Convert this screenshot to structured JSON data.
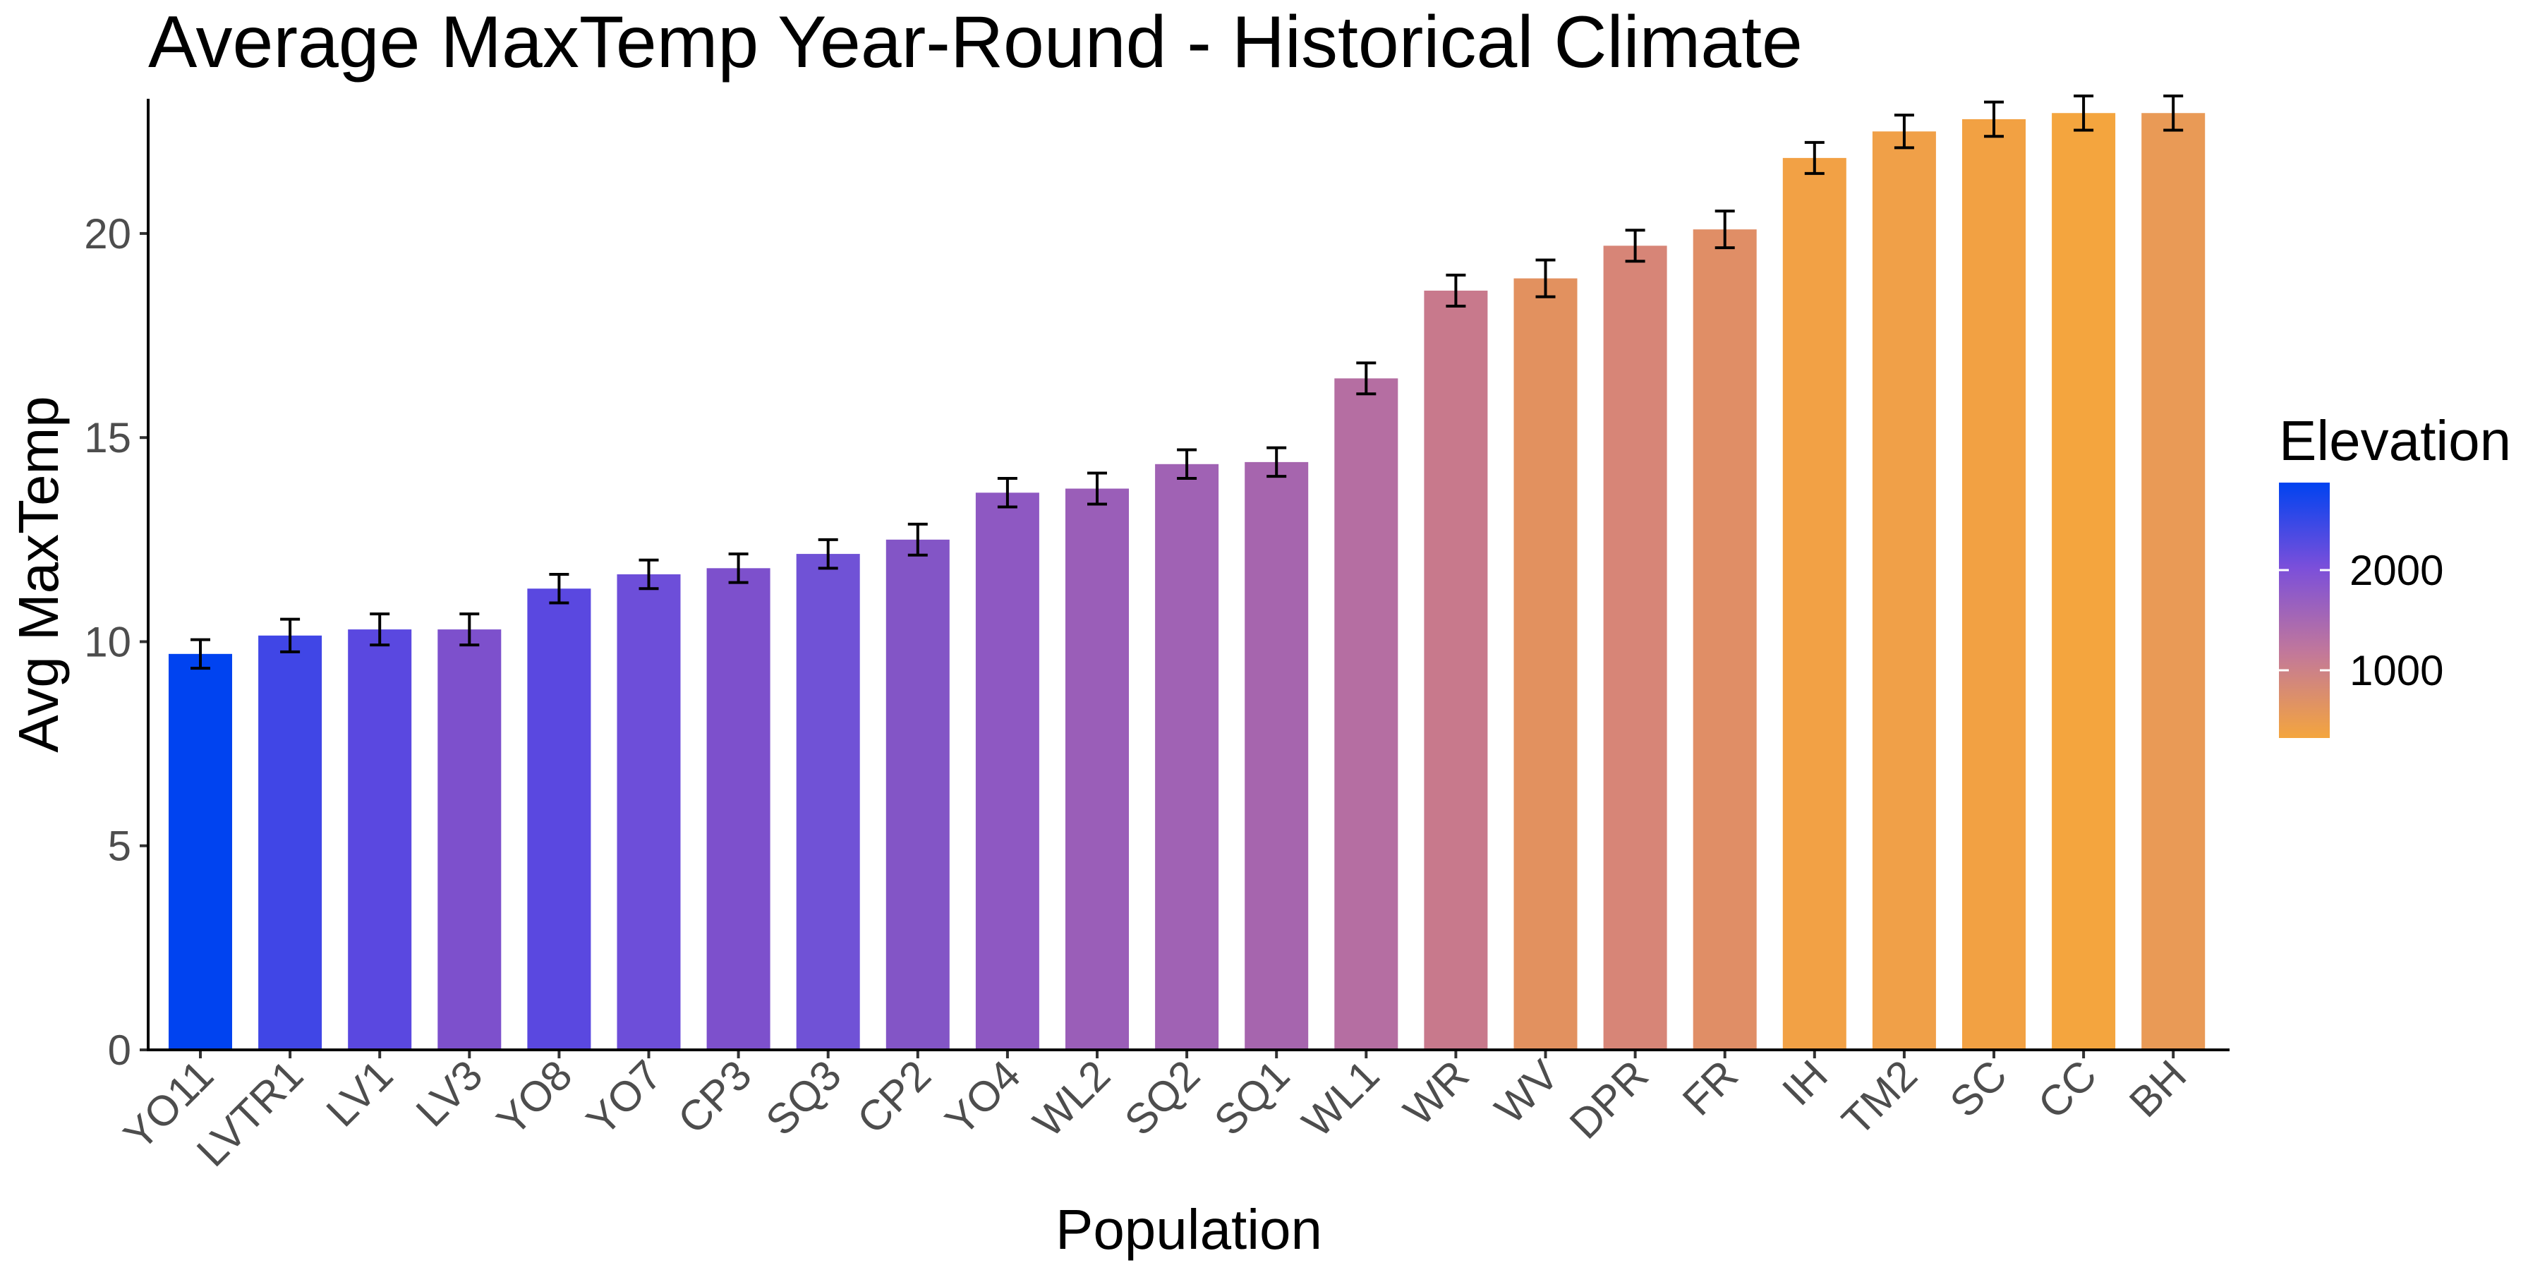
{
  "chart_data": {
    "type": "bar",
    "title": "Average MaxTemp Year-Round - Historical Climate",
    "xlabel": "Population",
    "ylabel": "Avg MaxTemp",
    "ylim": [
      0,
      23.3
    ],
    "yticks": [
      "0",
      "5",
      "10",
      "15",
      "20"
    ],
    "grid": false,
    "categories": [
      "YO11",
      "LVTR1",
      "LV1",
      "LV3",
      "YO8",
      "YO7",
      "CP3",
      "SQ3",
      "CP2",
      "YO4",
      "WL2",
      "SQ2",
      "SQ1",
      "WL1",
      "WR",
      "WV",
      "DPR",
      "FR",
      "IH",
      "TM2",
      "SC",
      "CC",
      "BH"
    ],
    "values": [
      9.7,
      10.15,
      10.3,
      10.3,
      11.3,
      11.65,
      11.8,
      12.15,
      12.5,
      13.65,
      13.75,
      14.35,
      14.4,
      16.45,
      18.6,
      18.9,
      19.7,
      20.1,
      21.85,
      22.5,
      22.8,
      22.95,
      22.95
    ],
    "error": [
      0.35,
      0.4,
      0.38,
      0.38,
      0.35,
      0.35,
      0.35,
      0.35,
      0.38,
      0.35,
      0.38,
      0.35,
      0.35,
      0.38,
      0.38,
      0.45,
      0.38,
      0.45,
      0.38,
      0.4,
      0.42,
      0.42,
      0.42
    ],
    "fill_colors": [
      "#0043F0",
      "#4046E6",
      "#5A48E0",
      "#7D50CC",
      "#5A48E0",
      "#6D4ED9",
      "#7D50CC",
      "#7052D6",
      "#8355C6",
      "#8E58C2",
      "#9A5EB8",
      "#A062B4",
      "#A665AE",
      "#B56EA2",
      "#C8798C",
      "#E2915F",
      "#D78577",
      "#E08E66",
      "#F2A145",
      "#F0A048",
      "#F2A143",
      "#F4A53E",
      "#E99A56"
    ],
    "legend": {
      "title": "Elevation",
      "type": "gradient",
      "position": "right",
      "labels": [
        "2000",
        "1000"
      ],
      "colors": [
        "#0043F0",
        "#7B4FDA",
        "#C2789A",
        "#F4A53E"
      ]
    }
  }
}
